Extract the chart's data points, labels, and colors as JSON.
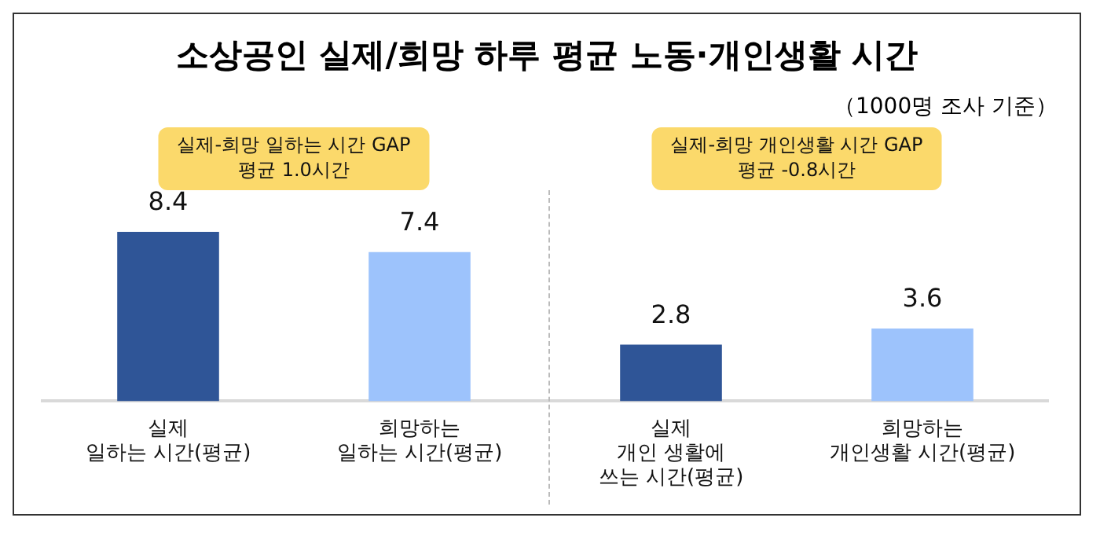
{
  "chart_data": {
    "type": "bar",
    "title": "소상공인 실제/희망 하루 평균 노동·개인생활 시간",
    "subtitle": "（1000명 조사 기준）",
    "categories": [
      "실제\n일하는 시간(평균)",
      "희망하는\n일하는 시간(평균)",
      "실제\n개인 생활에\n쓰는 시간(평균)",
      "희망하는\n개인생활 시간(평균)"
    ],
    "values": [
      8.4,
      7.4,
      2.8,
      3.6
    ],
    "colors": [
      "#2f5597",
      "#9dc3fc",
      "#2f5597",
      "#9dc3fc"
    ],
    "data_labels": true,
    "grid": false,
    "legend": false,
    "annotations": [
      "실제-희망 일하는 시간 GAP\n평균 1.0시간",
      "실제-희망 개인생활 시간 GAP\n평균 -0.8시간"
    ]
  }
}
